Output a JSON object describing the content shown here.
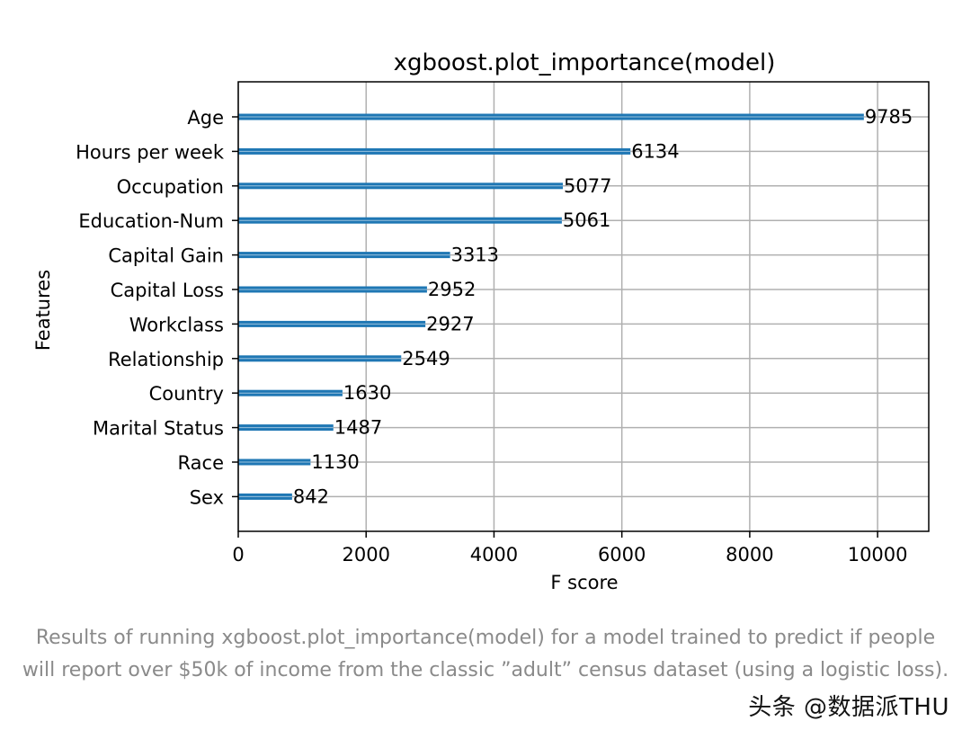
{
  "chart_data": {
    "type": "bar",
    "orientation": "horizontal",
    "title": "xgboost.plot_importance(model)",
    "xlabel": "F score",
    "ylabel": "Features",
    "categories": [
      "Age",
      "Hours per week",
      "Occupation",
      "Education-Num",
      "Capital Gain",
      "Capital Loss",
      "Workclass",
      "Relationship",
      "Country",
      "Marital Status",
      "Race",
      "Sex"
    ],
    "values": [
      9785,
      6134,
      5077,
      5061,
      3313,
      2952,
      2927,
      2549,
      1630,
      1487,
      1130,
      842
    ],
    "xlim": [
      0,
      10800
    ],
    "xticks": [
      0,
      2000,
      4000,
      6000,
      8000,
      10000
    ],
    "grid": true,
    "bar_color": "#1f77b4"
  },
  "caption": "Results of running xgboost.plot_importance(model) for a model trained to predict if people will report over $50k of income from the classic ”adult” census dataset (using a logistic loss).",
  "watermark": "头条 @数据派THU"
}
